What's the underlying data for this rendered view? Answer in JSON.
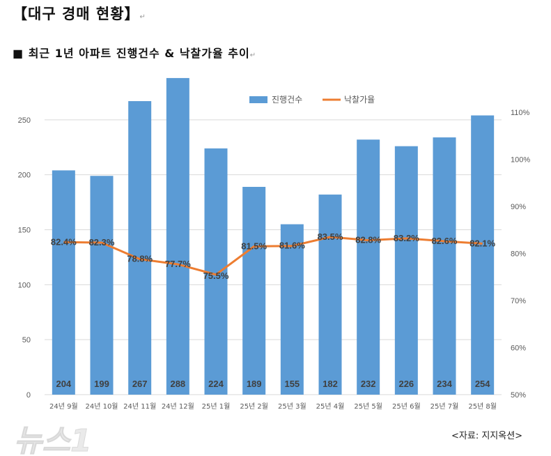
{
  "header": {
    "title": "【대구 경매 현황】",
    "subtitle": "■ 최근 1년 아파트 진행건수 & 낙찰가율 추이"
  },
  "source": "<자료: 지지옥션>",
  "watermark": "뉴스1",
  "colors": {
    "bar": "#5b9bd5",
    "line": "#ed7d31",
    "label": "#404040"
  },
  "chart_data": {
    "type": "bar+line",
    "categories": [
      "24년 9월",
      "24년 10월",
      "24년 11월",
      "24년 12월",
      "25년 1월",
      "25년 2월",
      "25년 3월",
      "25년 4월",
      "25년 5월",
      "25년 6월",
      "25년 7월",
      "25년 8월"
    ],
    "series": [
      {
        "name": "진행건수",
        "type": "bar",
        "axis": "left",
        "values": [
          204,
          199,
          267,
          288,
          224,
          189,
          155,
          182,
          232,
          226,
          234,
          254
        ]
      },
      {
        "name": "낙찰가율",
        "type": "line",
        "axis": "right",
        "values": [
          82.4,
          82.3,
          78.8,
          77.7,
          75.5,
          81.5,
          81.6,
          83.5,
          82.8,
          83.2,
          82.6,
          82.1
        ]
      }
    ],
    "y_left": {
      "ticks": [
        0,
        50,
        100,
        150,
        200,
        250
      ],
      "range": [
        0,
        300
      ]
    },
    "y_right": {
      "ticks": [
        "50%",
        "60%",
        "70%",
        "80%",
        "90%",
        "100%",
        "110%"
      ],
      "range": [
        50,
        110
      ]
    },
    "grid": true,
    "legend": "top-center"
  }
}
